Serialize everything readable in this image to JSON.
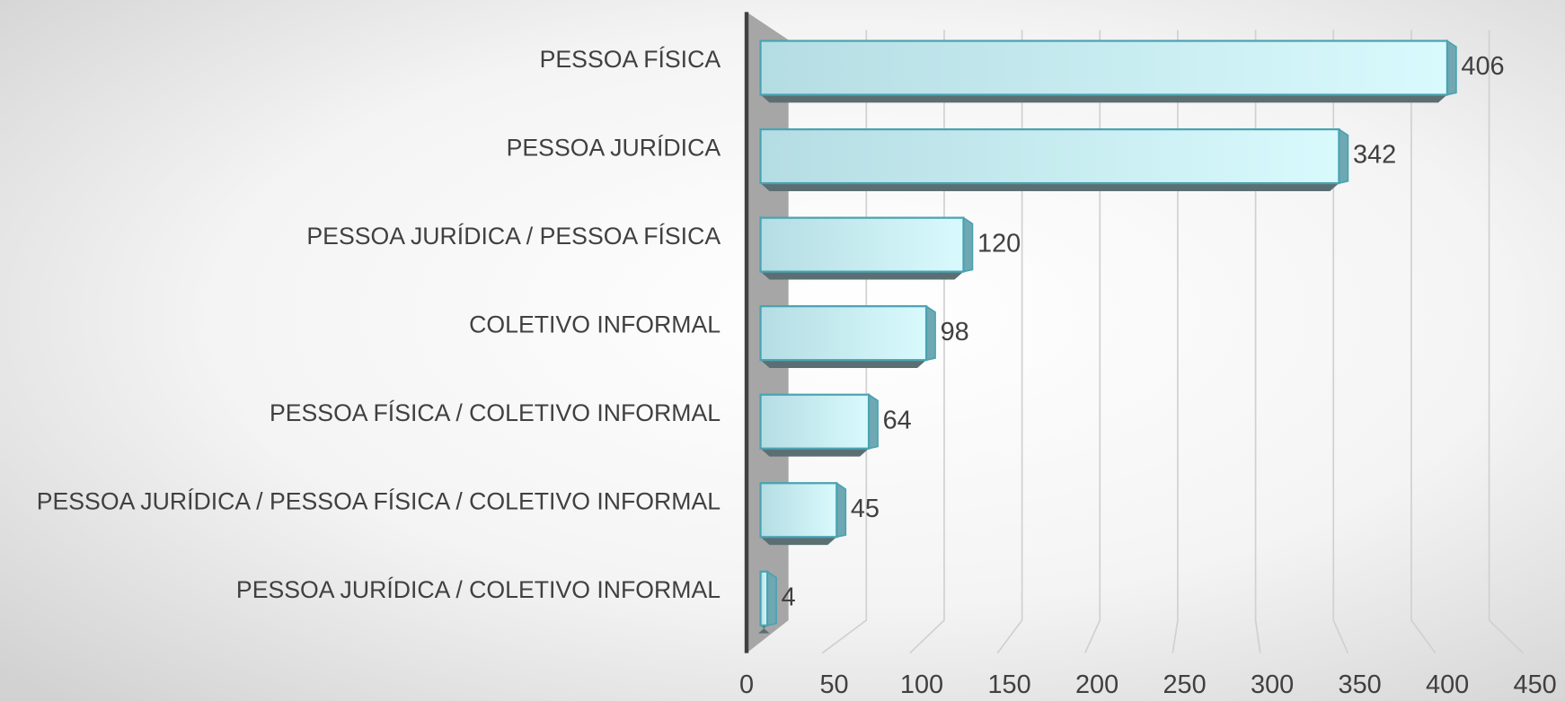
{
  "chart_data": {
    "type": "bar",
    "orientation": "horizontal",
    "categories": [
      "PESSOA FÍSICA",
      "PESSOA JURÍDICA",
      "PESSOA JURÍDICA / PESSOA FÍSICA",
      "COLETIVO INFORMAL",
      "PESSOA FÍSICA / COLETIVO INFORMAL",
      "PESSOA JURÍDICA / PESSOA FÍSICA / COLETIVO INFORMAL",
      "PESSOA JURÍDICA / COLETIVO INFORMAL"
    ],
    "values": [
      406,
      342,
      120,
      98,
      64,
      45,
      4
    ],
    "color": "#bfe6ec",
    "xlim": [
      0,
      450
    ],
    "xticks": [
      0,
      50,
      100,
      150,
      200,
      250,
      300,
      350,
      400,
      450
    ],
    "grid": true
  }
}
